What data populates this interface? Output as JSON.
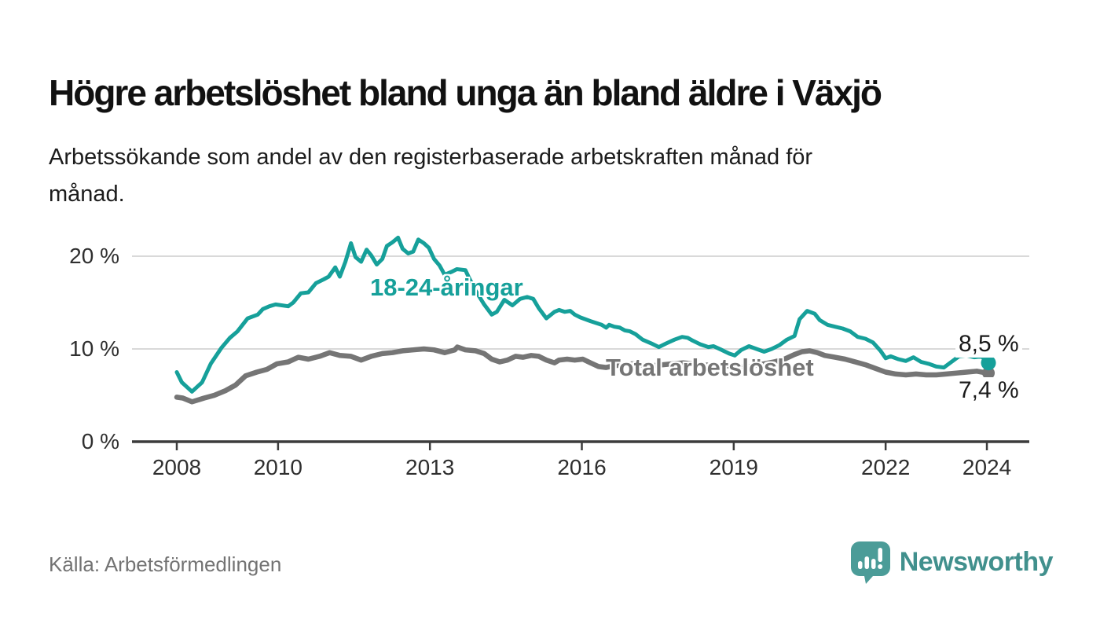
{
  "chart_data": {
    "type": "line",
    "title": "Högre arbetslöshet bland unga än bland äldre i Växjö",
    "subtitle": "Arbetssökande som andel av den registerbaserade arbetskraften månad för\nmånad.",
    "source": "Källa: Arbetsförmedlingen",
    "brand": "Newsworthy",
    "xlabel": "",
    "ylabel": "",
    "grid": "horizontal-only",
    "legend_position": "inline-annotations",
    "xlim": [
      2007.1,
      2024.8
    ],
    "ylim": [
      0,
      23.4
    ],
    "x_ticks": [
      2008,
      2010,
      2013,
      2016,
      2019,
      2022,
      2024
    ],
    "y_ticks": [
      {
        "value": 0,
        "label": "0 %"
      },
      {
        "value": 10,
        "label": "10 %"
      },
      {
        "value": 20,
        "label": "20 %"
      }
    ],
    "series": [
      {
        "name": "18-24-åringar",
        "color": "#16a09a",
        "end_label": "8,5 %",
        "end_value": 8.5,
        "points": [
          [
            2008.0,
            7.5
          ],
          [
            2008.1,
            6.4
          ],
          [
            2008.3,
            5.4
          ],
          [
            2008.5,
            6.4
          ],
          [
            2008.67,
            8.4
          ],
          [
            2008.88,
            10.1
          ],
          [
            2009.05,
            11.2
          ],
          [
            2009.2,
            11.9
          ],
          [
            2009.4,
            13.3
          ],
          [
            2009.6,
            13.7
          ],
          [
            2009.7,
            14.3
          ],
          [
            2009.83,
            14.6
          ],
          [
            2009.95,
            14.8
          ],
          [
            2010.2,
            14.6
          ],
          [
            2010.3,
            15.0
          ],
          [
            2010.45,
            16.0
          ],
          [
            2010.6,
            16.1
          ],
          [
            2010.75,
            17.1
          ],
          [
            2010.9,
            17.5
          ],
          [
            2011.0,
            17.8
          ],
          [
            2011.13,
            18.8
          ],
          [
            2011.22,
            17.8
          ],
          [
            2011.33,
            19.4
          ],
          [
            2011.44,
            21.4
          ],
          [
            2011.53,
            19.9
          ],
          [
            2011.64,
            19.4
          ],
          [
            2011.75,
            20.7
          ],
          [
            2011.84,
            20.1
          ],
          [
            2011.95,
            19.1
          ],
          [
            2012.06,
            19.7
          ],
          [
            2012.15,
            21.1
          ],
          [
            2012.26,
            21.5
          ],
          [
            2012.37,
            22.0
          ],
          [
            2012.46,
            20.8
          ],
          [
            2012.57,
            20.3
          ],
          [
            2012.67,
            20.5
          ],
          [
            2012.77,
            21.8
          ],
          [
            2012.88,
            21.4
          ],
          [
            2012.98,
            20.9
          ],
          [
            2013.08,
            19.7
          ],
          [
            2013.19,
            19.0
          ],
          [
            2013.29,
            18.0
          ],
          [
            2013.42,
            18.3
          ],
          [
            2013.53,
            18.6
          ],
          [
            2013.7,
            18.5
          ],
          [
            2013.76,
            17.8
          ],
          [
            2013.9,
            16.3
          ],
          [
            2014.07,
            14.8
          ],
          [
            2014.22,
            13.7
          ],
          [
            2014.32,
            14.0
          ],
          [
            2014.47,
            15.3
          ],
          [
            2014.63,
            14.7
          ],
          [
            2014.78,
            15.4
          ],
          [
            2014.92,
            15.6
          ],
          [
            2015.04,
            15.4
          ],
          [
            2015.15,
            14.4
          ],
          [
            2015.3,
            13.3
          ],
          [
            2015.46,
            14.0
          ],
          [
            2015.55,
            14.2
          ],
          [
            2015.66,
            14.0
          ],
          [
            2015.77,
            14.1
          ],
          [
            2015.86,
            13.7
          ],
          [
            2015.97,
            13.4
          ],
          [
            2016.17,
            13.0
          ],
          [
            2016.39,
            12.6
          ],
          [
            2016.48,
            12.3
          ],
          [
            2016.54,
            12.6
          ],
          [
            2016.64,
            12.4
          ],
          [
            2016.75,
            12.3
          ],
          [
            2016.85,
            12.0
          ],
          [
            2016.95,
            11.9
          ],
          [
            2017.06,
            11.6
          ],
          [
            2017.2,
            11.0
          ],
          [
            2017.37,
            10.6
          ],
          [
            2017.52,
            10.2
          ],
          [
            2017.67,
            10.6
          ],
          [
            2017.83,
            11.0
          ],
          [
            2017.98,
            11.3
          ],
          [
            2018.09,
            11.2
          ],
          [
            2018.19,
            10.9
          ],
          [
            2018.34,
            10.5
          ],
          [
            2018.5,
            10.2
          ],
          [
            2018.6,
            10.3
          ],
          [
            2018.76,
            9.9
          ],
          [
            2018.91,
            9.5
          ],
          [
            2019.02,
            9.3
          ],
          [
            2019.15,
            9.9
          ],
          [
            2019.3,
            10.3
          ],
          [
            2019.45,
            10.0
          ],
          [
            2019.6,
            9.7
          ],
          [
            2019.75,
            10.0
          ],
          [
            2019.9,
            10.4
          ],
          [
            2020.05,
            11.0
          ],
          [
            2020.2,
            11.4
          ],
          [
            2020.3,
            13.2
          ],
          [
            2020.45,
            14.1
          ],
          [
            2020.6,
            13.8
          ],
          [
            2020.7,
            13.1
          ],
          [
            2020.85,
            12.6
          ],
          [
            2021.0,
            12.4
          ],
          [
            2021.15,
            12.2
          ],
          [
            2021.3,
            11.9
          ],
          [
            2021.45,
            11.3
          ],
          [
            2021.6,
            11.1
          ],
          [
            2021.75,
            10.7
          ],
          [
            2021.9,
            9.8
          ],
          [
            2022.0,
            9.0
          ],
          [
            2022.1,
            9.2
          ],
          [
            2022.25,
            8.9
          ],
          [
            2022.4,
            8.7
          ],
          [
            2022.55,
            9.1
          ],
          [
            2022.7,
            8.6
          ],
          [
            2022.85,
            8.4
          ],
          [
            2023.0,
            8.1
          ],
          [
            2023.15,
            8.0
          ],
          [
            2023.3,
            8.6
          ],
          [
            2023.45,
            9.2
          ],
          [
            2023.6,
            9.3
          ],
          [
            2023.75,
            9.1
          ],
          [
            2023.9,
            9.2
          ],
          [
            2024.0,
            8.5
          ]
        ]
      },
      {
        "name": "Total arbetslöshet",
        "color": "#757575",
        "end_label": "7,4 %",
        "end_value": 7.4,
        "points": [
          [
            2008.0,
            4.8
          ],
          [
            2008.12,
            4.7
          ],
          [
            2008.3,
            4.3
          ],
          [
            2008.54,
            4.7
          ],
          [
            2008.74,
            5.0
          ],
          [
            2008.96,
            5.5
          ],
          [
            2009.16,
            6.1
          ],
          [
            2009.36,
            7.1
          ],
          [
            2009.58,
            7.5
          ],
          [
            2009.78,
            7.8
          ],
          [
            2009.98,
            8.4
          ],
          [
            2010.2,
            8.6
          ],
          [
            2010.4,
            9.1
          ],
          [
            2010.6,
            8.9
          ],
          [
            2010.82,
            9.2
          ],
          [
            2011.02,
            9.6
          ],
          [
            2011.22,
            9.3
          ],
          [
            2011.44,
            9.2
          ],
          [
            2011.64,
            8.8
          ],
          [
            2011.84,
            9.2
          ],
          [
            2012.06,
            9.5
          ],
          [
            2012.26,
            9.6
          ],
          [
            2012.46,
            9.8
          ],
          [
            2012.67,
            9.9
          ],
          [
            2012.88,
            10.0
          ],
          [
            2013.08,
            9.9
          ],
          [
            2013.29,
            9.6
          ],
          [
            2013.49,
            9.9
          ],
          [
            2013.54,
            10.2
          ],
          [
            2013.7,
            9.9
          ],
          [
            2013.9,
            9.8
          ],
          [
            2014.07,
            9.5
          ],
          [
            2014.22,
            8.9
          ],
          [
            2014.38,
            8.6
          ],
          [
            2014.53,
            8.8
          ],
          [
            2014.69,
            9.2
          ],
          [
            2014.84,
            9.1
          ],
          [
            2015.0,
            9.3
          ],
          [
            2015.15,
            9.2
          ],
          [
            2015.3,
            8.8
          ],
          [
            2015.46,
            8.5
          ],
          [
            2015.55,
            8.8
          ],
          [
            2015.71,
            8.9
          ],
          [
            2015.86,
            8.8
          ],
          [
            2016.02,
            8.9
          ],
          [
            2016.17,
            8.5
          ],
          [
            2016.33,
            8.1
          ],
          [
            2016.48,
            8.0
          ],
          [
            2016.65,
            8.2
          ],
          [
            2016.85,
            8.3
          ],
          [
            2017.0,
            8.4
          ],
          [
            2017.2,
            8.3
          ],
          [
            2017.4,
            8.2
          ],
          [
            2017.6,
            8.3
          ],
          [
            2017.8,
            8.4
          ],
          [
            2018.0,
            8.5
          ],
          [
            2018.2,
            8.4
          ],
          [
            2018.4,
            8.3
          ],
          [
            2018.6,
            8.2
          ],
          [
            2018.8,
            8.2
          ],
          [
            2019.0,
            8.1
          ],
          [
            2019.2,
            8.0
          ],
          [
            2019.4,
            8.2
          ],
          [
            2019.6,
            8.4
          ],
          [
            2019.8,
            8.6
          ],
          [
            2020.0,
            8.9
          ],
          [
            2020.2,
            9.4
          ],
          [
            2020.35,
            9.7
          ],
          [
            2020.5,
            9.8
          ],
          [
            2020.65,
            9.6
          ],
          [
            2020.8,
            9.3
          ],
          [
            2021.0,
            9.1
          ],
          [
            2021.2,
            8.9
          ],
          [
            2021.4,
            8.6
          ],
          [
            2021.6,
            8.3
          ],
          [
            2021.8,
            7.9
          ],
          [
            2022.0,
            7.5
          ],
          [
            2022.2,
            7.3
          ],
          [
            2022.4,
            7.2
          ],
          [
            2022.6,
            7.3
          ],
          [
            2022.8,
            7.2
          ],
          [
            2023.0,
            7.2
          ],
          [
            2023.2,
            7.3
          ],
          [
            2023.4,
            7.4
          ],
          [
            2023.6,
            7.5
          ],
          [
            2023.8,
            7.6
          ],
          [
            2024.0,
            7.4
          ]
        ]
      }
    ]
  },
  "colors": {
    "accent_teal": "#16a09a",
    "series_gray": "#757575",
    "gridline": "#d9d9d9",
    "axis": "#3c3c3c",
    "text_dark": "#111111",
    "brand_teal": "#41908d",
    "brand_icon_teal": "#4b9c98"
  }
}
